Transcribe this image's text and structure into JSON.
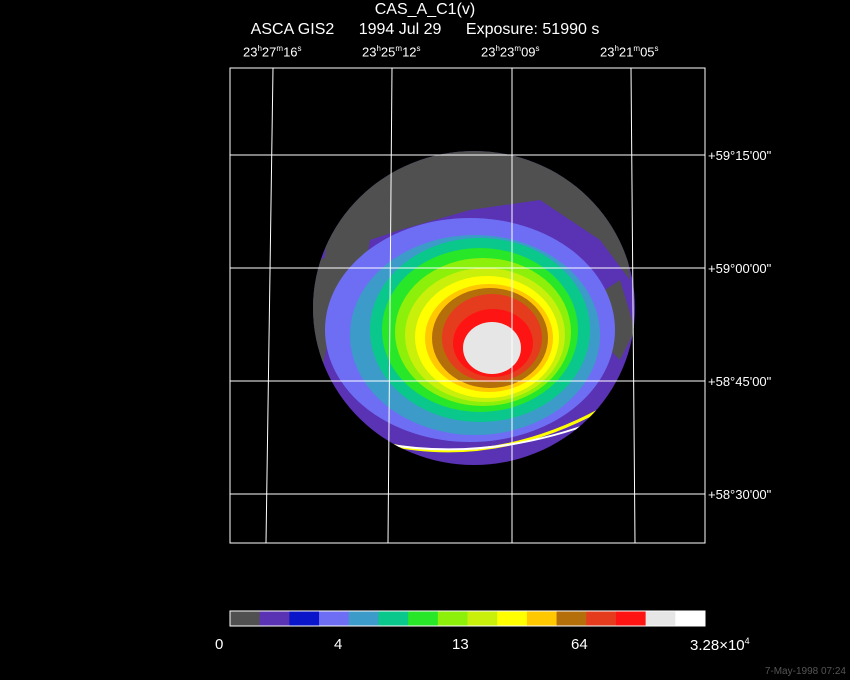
{
  "header": {
    "title": "CAS_A_C1(v)",
    "instrument": "ASCA GIS2",
    "date": "1994 Jul 29",
    "exposure": "Exposure: 51990 s"
  },
  "ra_labels": [
    {
      "h": "23",
      "m": "27",
      "s": "16"
    },
    {
      "h": "23",
      "m": "25",
      "s": "12"
    },
    {
      "h": "23",
      "m": "23",
      "s": "09"
    },
    {
      "h": "23",
      "m": "21",
      "s": "05"
    }
  ],
  "dec_labels": [
    "+59°15'00\"",
    "+59°00'00\"",
    "+58°45'00\"",
    "+58°30'00\""
  ],
  "colorbar": {
    "colors": [
      "#505050",
      "#5a32b4",
      "#0a14c8",
      "#6e6ef5",
      "#3c9bc8",
      "#0ac88c",
      "#28e628",
      "#8cf00a",
      "#c8f00a",
      "#ffff00",
      "#ffc800",
      "#b46e0a",
      "#e63c1e",
      "#ff1414",
      "#e6e6e6",
      "#ffffff"
    ],
    "labels": [
      "0",
      "4",
      "13",
      "64"
    ],
    "max_label": "3.28×10",
    "max_exp": "4"
  },
  "timestamp": "7-May-1998 07:24"
}
